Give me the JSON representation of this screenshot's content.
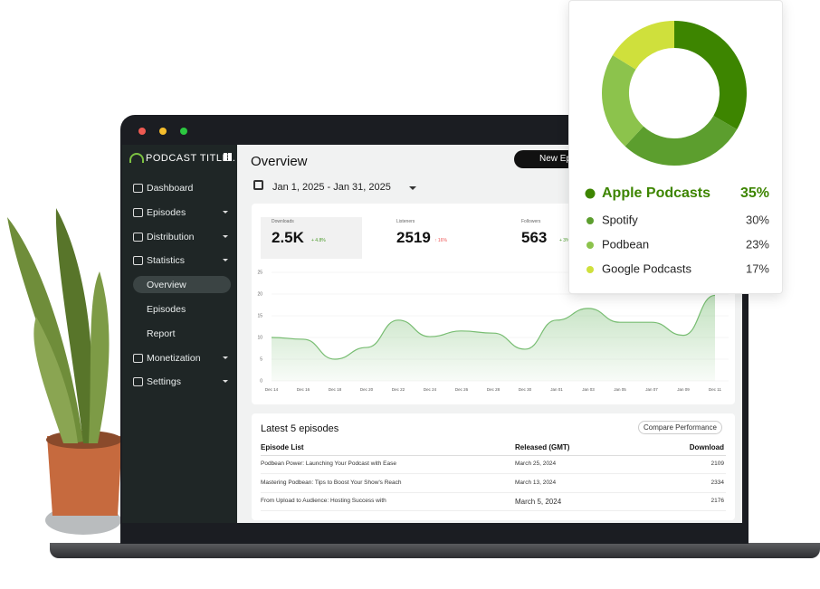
{
  "sidebar": {
    "brand": "PODCAST TITLE..",
    "nav": [
      "Dashboard",
      "Episodes",
      "Distribution",
      "Statistics",
      "Overview",
      "Episodes",
      "Report",
      "Monetization",
      "Settings"
    ]
  },
  "header": {
    "title": "Overview",
    "button": "New Ep",
    "date_range": "Jan 1, 2025 - Jan 31, 2025"
  },
  "stats": [
    {
      "label": "Downloads",
      "value": "2.5K",
      "change": "+ 4.8%"
    },
    {
      "label": "Listeners",
      "value": "2519",
      "change": "↑ 16%"
    },
    {
      "label": "Followers",
      "value": "563",
      "change": "+ 3%"
    }
  ],
  "chart_data": [
    {
      "type": "pie",
      "categories": [
        "Apple Podcasts",
        "Spotify",
        "Podbean",
        "Google Podcasts"
      ],
      "values": [
        35,
        30,
        23,
        17
      ],
      "value_labels": [
        "35%",
        "30%",
        "23%",
        "17%"
      ],
      "colors": [
        "#3d8500",
        "#5c9e2e",
        "#8cc34c",
        "#cfe03c"
      ]
    },
    {
      "type": "line",
      "categories": [
        "Dec 14",
        "Dec 16",
        "Dec 18",
        "Dec 20",
        "Dec 22",
        "Dec 24",
        "Dec 26",
        "Dec 28",
        "Dec 30",
        "Jan 01",
        "Jan 03",
        "Jan 05",
        "Jan 07",
        "Jan 09",
        "Dec 11"
      ],
      "values": [
        10,
        9.6,
        5,
        7.7,
        14,
        10.2,
        11.5,
        11,
        7.3,
        14,
        16.7,
        13.5,
        13.5,
        10.5,
        19.7
      ],
      "ylim": [
        0,
        25
      ],
      "yticks": [
        0,
        5,
        10,
        15,
        20,
        25
      ],
      "color": "#78bd72",
      "grid": true
    }
  ],
  "table": {
    "title": "Latest 5 episodes",
    "action": "Compare Performance",
    "columns": [
      "Episode List",
      "Released (GMT)",
      "Download"
    ],
    "rows": [
      [
        "Podbean Power: Launching Your Podcast with Ease",
        "March 25, 2024",
        "2109"
      ],
      [
        "Mastering Podbean: Tips to Boost Your Show's Reach",
        "March 13, 2024",
        "2334"
      ],
      [
        "From Upload to Audience: Hosting Success with",
        "March 5, 2024",
        "2176"
      ]
    ]
  }
}
